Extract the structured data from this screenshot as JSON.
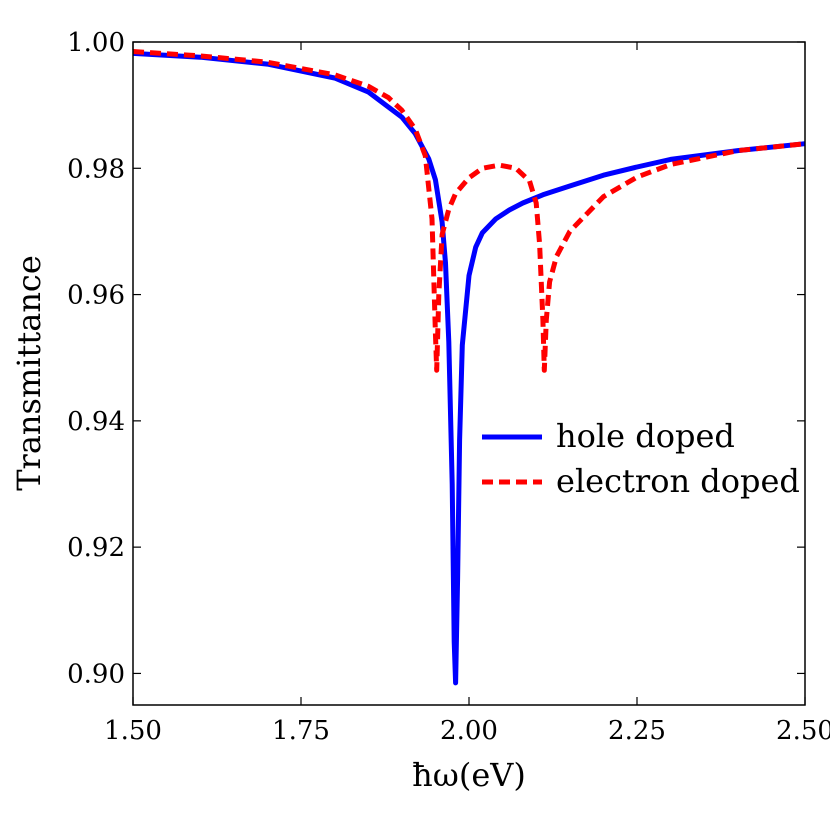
{
  "chart_data": {
    "type": "line",
    "title": "",
    "xlabel": "ħω(eV)",
    "ylabel": "Transmittance",
    "xlim": [
      1.5,
      2.5
    ],
    "ylim": [
      0.895,
      1.0
    ],
    "x_ticks": [
      1.5,
      1.75,
      2.0,
      2.25,
      2.5
    ],
    "x_tick_labels": [
      "1.50",
      "1.75",
      "2.00",
      "2.25",
      "2.50"
    ],
    "y_ticks": [
      0.9,
      0.92,
      0.94,
      0.96,
      0.98,
      1.0
    ],
    "y_tick_labels": [
      "0.90",
      "0.92",
      "0.94",
      "0.96",
      "0.98",
      "1.00"
    ],
    "grid": false,
    "legend_position": "center-right",
    "series": [
      {
        "name": "hole doped",
        "color": "#0000ff",
        "style": "solid",
        "x": [
          1.5,
          1.6,
          1.7,
          1.8,
          1.85,
          1.9,
          1.92,
          1.94,
          1.95,
          1.96,
          1.965,
          1.97,
          1.975,
          1.978,
          1.98,
          1.983,
          1.986,
          1.99,
          2.0,
          2.01,
          2.02,
          2.04,
          2.06,
          2.08,
          2.11,
          2.15,
          2.2,
          2.25,
          2.3,
          2.4,
          2.5
        ],
        "y": [
          0.9982,
          0.9976,
          0.9965,
          0.9943,
          0.9921,
          0.9881,
          0.9855,
          0.9815,
          0.9782,
          0.9715,
          0.965,
          0.9525,
          0.93,
          0.905,
          0.8985,
          0.915,
          0.937,
          0.952,
          0.963,
          0.9675,
          0.9698,
          0.972,
          0.9734,
          0.9745,
          0.9758,
          0.9772,
          0.9789,
          0.9802,
          0.9814,
          0.9828,
          0.9839
        ]
      },
      {
        "name": "electron doped",
        "color": "#ff0000",
        "style": "dashed",
        "x": [
          1.5,
          1.6,
          1.7,
          1.8,
          1.85,
          1.88,
          1.9,
          1.92,
          1.935,
          1.945,
          1.95,
          1.952,
          1.955,
          1.96,
          1.97,
          1.98,
          2.0,
          2.02,
          2.045,
          2.07,
          2.09,
          2.1,
          2.105,
          2.11,
          2.112,
          2.115,
          2.12,
          2.13,
          2.15,
          2.2,
          2.25,
          2.3,
          2.4,
          2.5
        ],
        "y": [
          0.9985,
          0.9978,
          0.9968,
          0.9948,
          0.993,
          0.9912,
          0.9892,
          0.9862,
          0.982,
          0.972,
          0.954,
          0.948,
          0.96,
          0.9695,
          0.9735,
          0.976,
          0.9785,
          0.98,
          0.9805,
          0.98,
          0.978,
          0.9745,
          0.968,
          0.956,
          0.948,
          0.956,
          0.962,
          0.966,
          0.97,
          0.9755,
          0.9786,
          0.9806,
          0.9828,
          0.9839
        ]
      }
    ]
  }
}
